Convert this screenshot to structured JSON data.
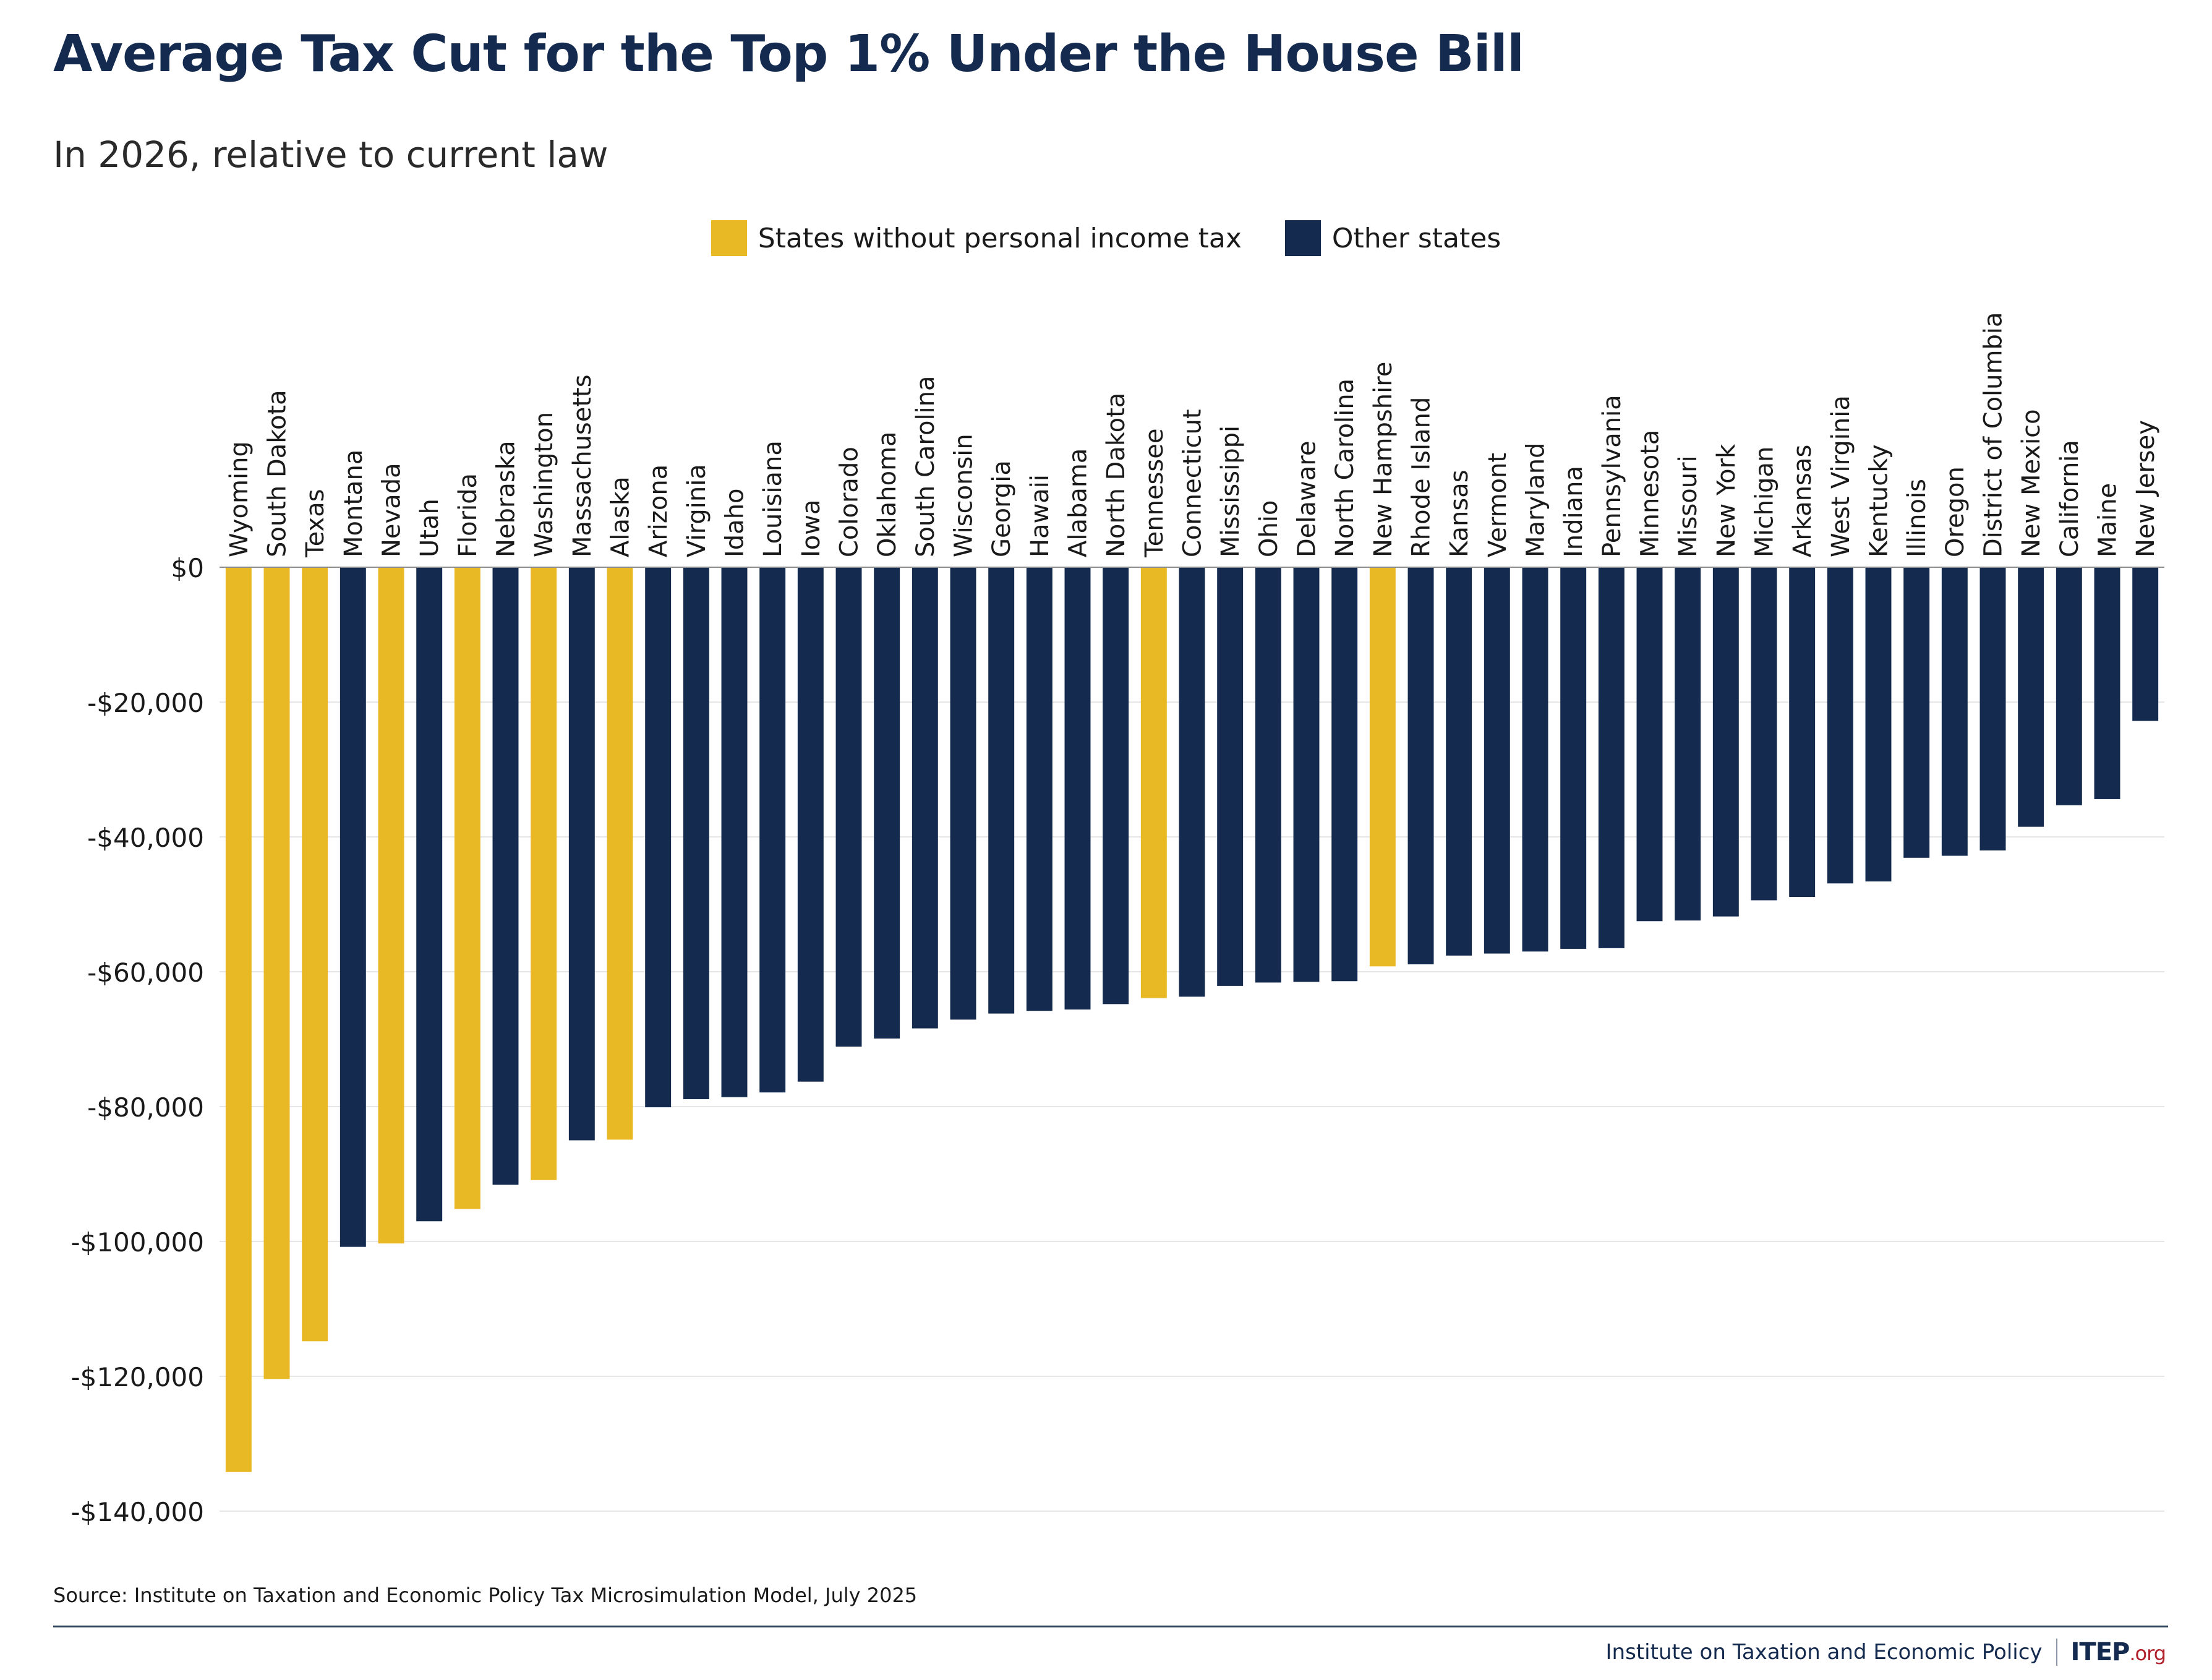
{
  "title": "Average Tax Cut for the Top 1% Under the House Bill",
  "subtitle": "In 2026, relative to current law",
  "source": "Source: Institute on Taxation and Economic Policy Tax Microsimulation Model, July 2025",
  "footer": {
    "org": "Institute on Taxation and Economic Policy",
    "logo": "ITEP",
    "logo_suffix": ".org"
  },
  "colors": {
    "no_income_tax": "#e8b825",
    "other": "#142b4f"
  },
  "chart_data": {
    "type": "bar",
    "legend": {
      "position": "top-center",
      "entries": [
        {
          "label": "States without personal income tax",
          "color": "#e8b825"
        },
        {
          "label": "Other states",
          "color": "#142b4f"
        }
      ]
    },
    "ylim": [
      -140000,
      0
    ],
    "yticks": [
      0,
      -20000,
      -40000,
      -60000,
      -80000,
      -100000,
      -120000,
      -140000
    ],
    "ytick_labels": [
      "$0",
      "-$20,000",
      "-$40,000",
      "-$60,000",
      "-$80,000",
      "-$100,000",
      "-$120,000",
      "-$140,000"
    ],
    "grid": true,
    "categories": [
      "Wyoming",
      "South Dakota",
      "Texas",
      "Montana",
      "Nevada",
      "Utah",
      "Florida",
      "Nebraska",
      "Washington",
      "Massachusetts",
      "Alaska",
      "Arizona",
      "Virginia",
      "Idaho",
      "Louisiana",
      "Iowa",
      "Colorado",
      "Oklahoma",
      "South Carolina",
      "Wisconsin",
      "Georgia",
      "Hawaii",
      "Alabama",
      "North Dakota",
      "Tennessee",
      "Connecticut",
      "Mississippi",
      "Ohio",
      "Delaware",
      "North Carolina",
      "New Hampshire",
      "Rhode Island",
      "Kansas",
      "Vermont",
      "Maryland",
      "Indiana",
      "Pennsylvania",
      "Minnesota",
      "Missouri",
      "New York",
      "Michigan",
      "Arkansas",
      "West Virginia",
      "Kentucky",
      "Illinois",
      "Oregon",
      "District of Columbia",
      "New Mexico",
      "California",
      "Maine",
      "New Jersey"
    ],
    "values": [
      -134200,
      -120400,
      -114800,
      -100800,
      -100300,
      -97000,
      -95200,
      -91600,
      -90900,
      -85000,
      -84900,
      -80100,
      -78900,
      -78600,
      -77900,
      -76300,
      -71100,
      -69900,
      -68400,
      -67100,
      -66200,
      -65800,
      -65600,
      -64800,
      -63900,
      -63700,
      -62100,
      -61600,
      -61500,
      -61400,
      -59200,
      -58900,
      -57600,
      -57300,
      -57000,
      -56600,
      -56500,
      -52500,
      -52400,
      -51800,
      -49400,
      -48900,
      -46900,
      -46600,
      -43100,
      -42800,
      -42000,
      -38500,
      -35300,
      -34400,
      -22800
    ],
    "no_income_tax": [
      "Wyoming",
      "South Dakota",
      "Texas",
      "Nevada",
      "Florida",
      "Washington",
      "Alaska",
      "Tennessee",
      "New Hampshire"
    ]
  }
}
